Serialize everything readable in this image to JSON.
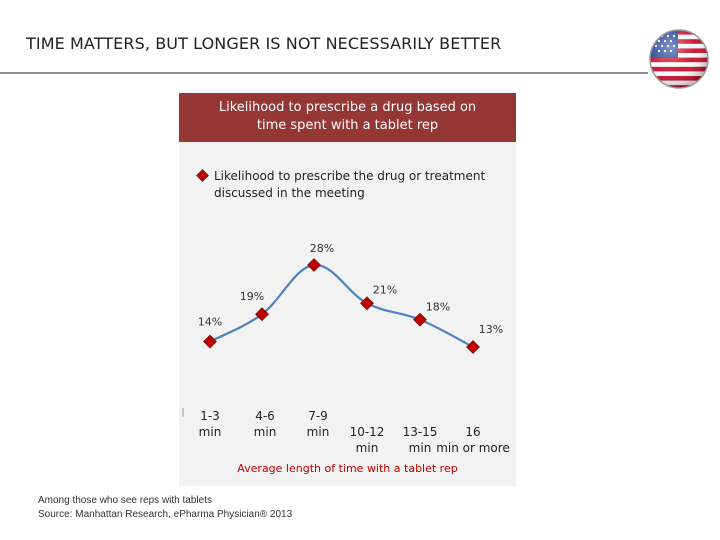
{
  "slide": {
    "title": "TIME MATTERS, BUT LONGER IS NOT NECESSARILY BETTER"
  },
  "flag": {
    "icon": "us-flag-icon"
  },
  "colors": {
    "header_bg": "#953735",
    "line": "#4f81bd",
    "marker": "#c00000",
    "axis_title": "#c00000",
    "panel_bg": "#f2f2f2"
  },
  "chart_data": {
    "type": "line",
    "title": "Likelihood to prescribe a drug based on time spent with a tablet rep",
    "xlabel": "Average length of time with a tablet rep",
    "ylabel": "",
    "categories": [
      "1-3 min",
      "4-6 min",
      "7-9 min",
      "10-12 min",
      "13-15 min",
      "16 min or more"
    ],
    "series": [
      {
        "name": "Likelihood to prescribe the drug or treatment discussed in the meeting",
        "values": [
          14,
          19,
          28,
          21,
          18,
          13
        ],
        "labels": [
          "14%",
          "19%",
          "28%",
          "21%",
          "18%",
          "13%"
        ]
      }
    ],
    "ylim": [
      0,
      35
    ],
    "grid": false,
    "legend_position": "top"
  },
  "footnote": {
    "line1": "Among those who see reps with tablets",
    "line2": "Source: Manhattan Research, ePharma Physician® 2013"
  }
}
